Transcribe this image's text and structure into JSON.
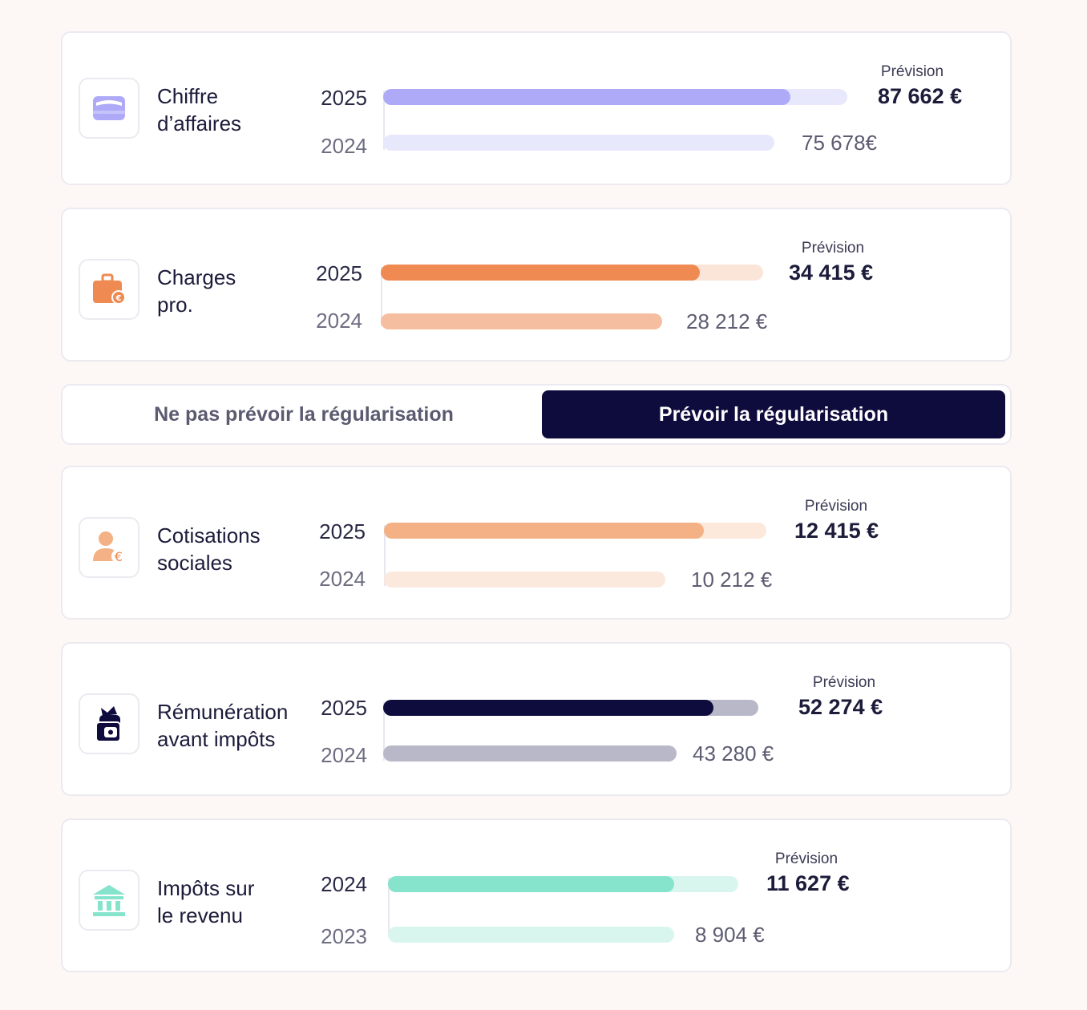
{
  "prevision_label": "Prévision",
  "colors": {
    "accent_dark": "#0e0b3d",
    "purple": "#aeaaf7",
    "orange": "#ee8a52",
    "peach": "#f3b185",
    "teal": "#86e3cc"
  },
  "cards": [
    {
      "id": "chiffre-affaires",
      "icon": "wallet-icon",
      "label_line1": "Chiffre",
      "label_line2": "d’affaires",
      "year_current": "2025",
      "year_previous": "2024",
      "forecast_label": "Prévision",
      "forecast_value": "87 662 €",
      "previous_value": "75 678€",
      "current_amount": 87662,
      "previous_amount": 75678
    },
    {
      "id": "charges-pro",
      "icon": "briefcase-euro-icon",
      "label_line1": "Charges",
      "label_line2": "pro.",
      "year_current": "2025",
      "year_previous": "2024",
      "forecast_label": "Prévision",
      "forecast_value": "34 415 €",
      "previous_value": "28 212 €",
      "current_amount": 34415,
      "previous_amount": 28212
    },
    {
      "id": "cotisations-sociales",
      "icon": "person-euro-icon",
      "label_line1": "Cotisations",
      "label_line2": "sociales",
      "year_current": "2025",
      "year_previous": "2024",
      "forecast_label": "Prévision",
      "forecast_value": "12 415 €",
      "previous_value": "10 212 €",
      "current_amount": 12415,
      "previous_amount": 10212
    },
    {
      "id": "remuneration",
      "icon": "money-bag-icon",
      "label_line1": "Rémunération",
      "label_line2": "avant impôts",
      "year_current": "2025",
      "year_previous": "2024",
      "forecast_label": "Prévision",
      "forecast_value": "52 274 €",
      "previous_value": "43 280 €",
      "current_amount": 52274,
      "previous_amount": 43280
    },
    {
      "id": "impots-revenu",
      "icon": "bank-icon",
      "label_line1": "Impôts sur",
      "label_line2": "le revenu",
      "year_current": "2024",
      "year_previous": "2023",
      "forecast_label": "Prévision",
      "forecast_value": "11 627 €",
      "previous_value": "8 904 €",
      "current_amount": 11627,
      "previous_amount": 8904
    }
  ],
  "toggle": {
    "option_off": "Ne pas prévoir la régularisation",
    "option_on": "Prévoir la régularisation",
    "selected": "Prévoir la régularisation"
  }
}
